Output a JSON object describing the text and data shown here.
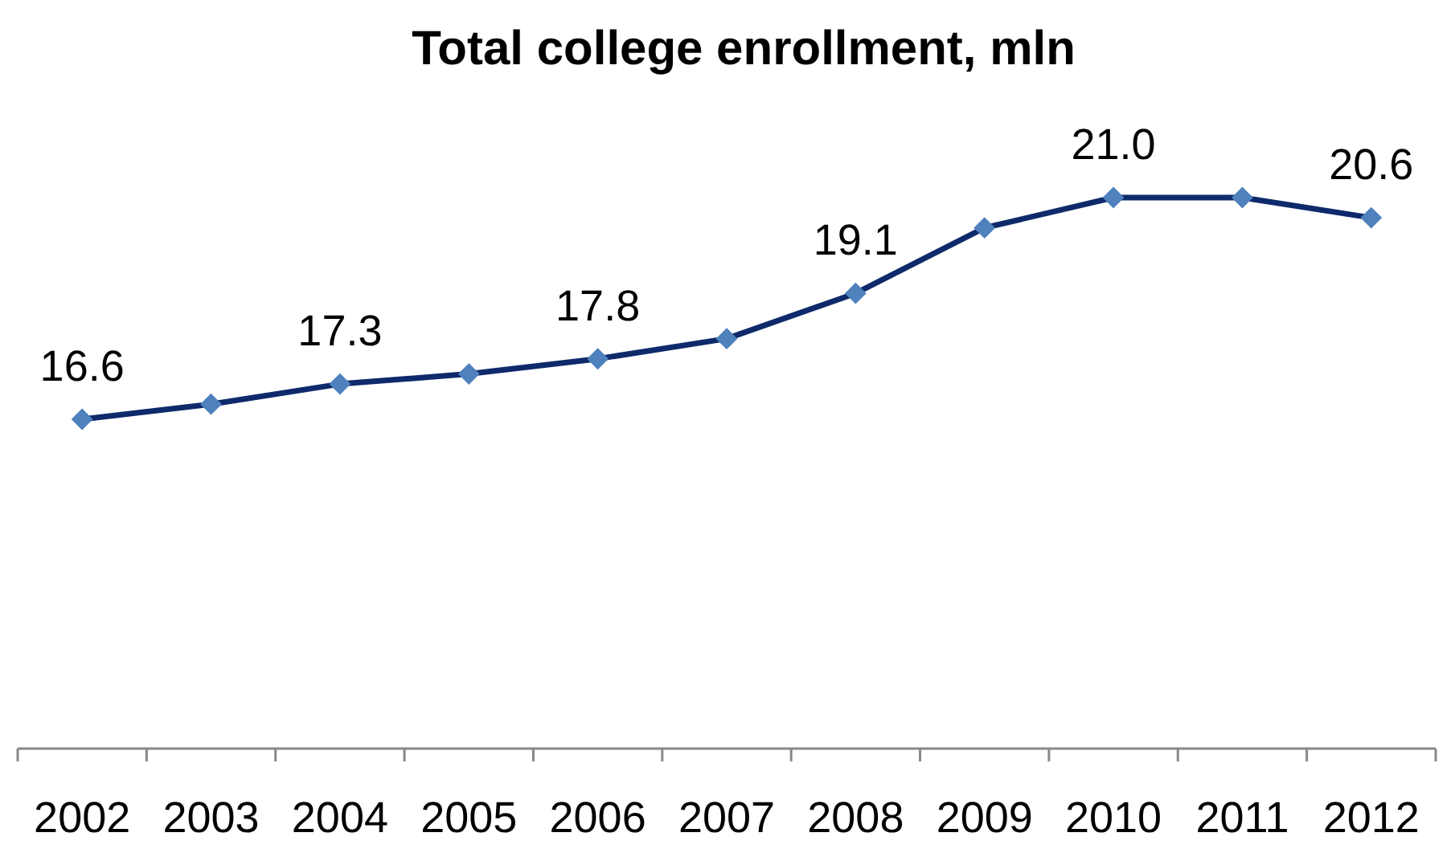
{
  "chart_data": {
    "type": "line",
    "title": "Total college enrollment, mln",
    "categories": [
      "2002",
      "2003",
      "2004",
      "2005",
      "2006",
      "2007",
      "2008",
      "2009",
      "2010",
      "2011",
      "2012"
    ],
    "series": [
      {
        "color": "#0e2a6b",
        "values": [
          16.6,
          16.9,
          17.3,
          17.5,
          17.8,
          18.2,
          19.1,
          20.4,
          21.0,
          21.0,
          20.6
        ],
        "value_labels": [
          "16.6",
          null,
          "17.3",
          null,
          "17.8",
          null,
          "19.1",
          null,
          "21.0",
          null,
          "20.6"
        ]
      }
    ],
    "tick_labels": "x",
    "marker": "diamond",
    "line_style": "solid"
  }
}
